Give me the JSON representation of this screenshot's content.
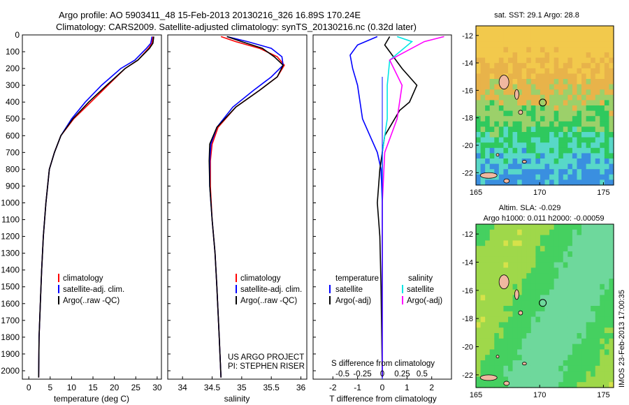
{
  "header": {
    "title_line1": "Argo profile: AO 5903411_48 15-Feb-2013 20130216_326 16.89S 170.24E",
    "title_line2": "Climatology: CARS2009. Satellite-adjusted climatology: synTS_20130216.nc (0.32d later)"
  },
  "depth_axis": {
    "ticks": [
      0,
      100,
      200,
      300,
      400,
      500,
      600,
      700,
      800,
      900,
      1000,
      1100,
      1200,
      1300,
      1400,
      1500,
      1600,
      1700,
      1800,
      1900,
      2000
    ],
    "range": [
      0,
      2050
    ]
  },
  "colors": {
    "climatology": "#ff0000",
    "satellite": "#0000ff",
    "argo": "#000000",
    "sal_satellite": "#00e5e5",
    "sal_argo": "#ff00ff",
    "land": "#f0b8a0"
  },
  "panels": {
    "temperature": {
      "xlabel": "temperature (deg C)",
      "xticks": [
        0,
        5,
        10,
        15,
        20,
        25,
        30
      ],
      "xlim": [
        -1.5,
        31
      ],
      "legend": [
        "climatology",
        "satellite-adj. clim.",
        "Argo(..raw -QC)"
      ]
    },
    "salinity": {
      "xlabel": "salinity",
      "xticks": [
        34,
        34.5,
        35,
        35.5,
        36
      ],
      "xlim": [
        33.75,
        36.1
      ],
      "legend": [
        "climatology",
        "satellite-adj. clim.",
        "Argo(..raw -QC)"
      ],
      "credit_line1": "US ARGO PROJECT",
      "credit_line2": "PI: STEPHEN RISER"
    },
    "difference": {
      "xlabel": "T difference from climatology",
      "s_label": "S difference from climatology",
      "t_ticks": [
        -2,
        -1,
        0,
        1,
        2
      ],
      "s_ticks": [
        "-0.5",
        "-0.25",
        "0",
        "0.25",
        "0.5"
      ],
      "t_xlim": [
        -2.8,
        2.8
      ],
      "legend_temperature_head": "temperature",
      "legend_salinity_head": "salinity",
      "legend_temperature": [
        "satellite",
        "Argo(-adj)"
      ],
      "legend_salinity": [
        "satellite",
        "Argo(-adj)"
      ]
    }
  },
  "maps": {
    "sst": {
      "title": "sat. SST: 29.1  Argo: 28.8",
      "xticks": [
        165,
        170,
        175
      ],
      "yticks": [
        -12,
        -14,
        -16,
        -18,
        -20,
        -22
      ],
      "xlim": [
        165,
        175.8
      ],
      "ylim": [
        -11.3,
        -22.9
      ],
      "profile": [
        170.24,
        -16.89
      ]
    },
    "sla": {
      "title_line1": "Altim. SLA: -0.029",
      "title_line2": "Argo h1000: 0.011 h2000: -0.00059",
      "xticks": [
        165,
        170,
        175
      ],
      "yticks": [
        -12,
        -14,
        -16,
        -18,
        -20,
        -22
      ],
      "xlim": [
        165,
        175.8
      ],
      "ylim": [
        -11.3,
        -22.9
      ],
      "profile": [
        170.24,
        -16.89
      ]
    },
    "side_stamp": "IMOS 23-Feb-2013 17:00:35"
  },
  "chart_data": [
    {
      "type": "line",
      "title": "",
      "xlabel": "temperature (deg C)",
      "ylabel": "",
      "xlim": [
        -1.5,
        31
      ],
      "ylim": [
        2050,
        0
      ],
      "series": [
        {
          "name": "climatology",
          "x": [
            29.0,
            28.8,
            28.0,
            25.5,
            22.5,
            18.5,
            14.5,
            10.5,
            7.5,
            6.0,
            4.8,
            4.0,
            3.4,
            3.0,
            2.7,
            2.4,
            2.3
          ],
          "y": [
            10,
            50,
            80,
            150,
            200,
            300,
            400,
            500,
            600,
            700,
            800,
            1000,
            1200,
            1400,
            1600,
            1800,
            2040
          ]
        },
        {
          "name": "satellite-adj. clim.",
          "x": [
            28.8,
            28.5,
            27.5,
            24.8,
            21.5,
            17.0,
            13.2,
            10.0,
            7.5,
            6.0,
            4.8,
            4.0,
            3.4,
            3.0,
            2.7,
            2.4,
            2.3
          ],
          "y": [
            10,
            50,
            80,
            150,
            200,
            300,
            400,
            500,
            600,
            700,
            800,
            1000,
            1200,
            1400,
            1600,
            1800,
            2040
          ]
        },
        {
          "name": "Argo(..raw -QC)",
          "x": [
            29.2,
            29.0,
            28.2,
            25.5,
            22.5,
            18.2,
            14.0,
            10.3,
            7.5,
            6.0,
            4.8,
            4.0,
            3.4,
            3.0,
            2.7,
            2.4,
            2.3
          ],
          "y": [
            10,
            50,
            80,
            150,
            200,
            300,
            400,
            500,
            600,
            700,
            800,
            1000,
            1200,
            1400,
            1600,
            1800,
            2040
          ]
        }
      ]
    },
    {
      "type": "line",
      "title": "",
      "xlabel": "salinity",
      "ylabel": "",
      "xlim": [
        33.75,
        36.1
      ],
      "ylim": [
        2050,
        0
      ],
      "series": [
        {
          "name": "climatology",
          "x": [
            34.65,
            34.9,
            35.3,
            35.6,
            35.72,
            35.6,
            35.3,
            34.9,
            34.6,
            34.5,
            34.47,
            34.47,
            34.5,
            34.55,
            34.58,
            34.62,
            34.65
          ],
          "y": [
            10,
            40,
            80,
            130,
            180,
            250,
            330,
            430,
            550,
            650,
            750,
            900,
            1100,
            1300,
            1500,
            1800,
            2040
          ]
        },
        {
          "name": "satellite-adj. clim.",
          "x": [
            34.75,
            35.1,
            35.5,
            35.68,
            35.7,
            35.5,
            35.2,
            34.85,
            34.58,
            34.48,
            34.46,
            34.46,
            34.5,
            34.55,
            34.58,
            34.62,
            34.65
          ],
          "y": [
            10,
            40,
            80,
            130,
            180,
            250,
            330,
            430,
            550,
            650,
            750,
            900,
            1100,
            1300,
            1500,
            1800,
            2040
          ]
        },
        {
          "name": "Argo(..raw -QC)",
          "x": [
            34.75,
            35.0,
            35.35,
            35.55,
            35.7,
            35.6,
            35.3,
            34.9,
            34.58,
            34.46,
            34.45,
            34.46,
            34.5,
            34.55,
            34.58,
            34.62,
            34.65
          ],
          "y": [
            10,
            40,
            80,
            130,
            180,
            250,
            330,
            430,
            550,
            650,
            750,
            900,
            1100,
            1300,
            1500,
            1800,
            2040
          ]
        }
      ]
    },
    {
      "type": "line",
      "title": "",
      "xlabel": "T difference from climatology",
      "ylabel": "",
      "xlim": [
        -2.8,
        2.8
      ],
      "ylim": [
        2050,
        0
      ],
      "series": [
        {
          "name": "temperature satellite",
          "x": [
            -0.2,
            -1.0,
            -1.3,
            -1.2,
            -1.0,
            -0.8,
            -0.5,
            -0.2,
            -0.05,
            0,
            0,
            0
          ],
          "y": [
            10,
            60,
            120,
            200,
            300,
            500,
            600,
            700,
            800,
            1000,
            1500,
            2040
          ]
        },
        {
          "name": "temperature Argo(-adj)",
          "x": [
            0.3,
            0.1,
            0.8,
            1.4,
            1.1,
            0.7,
            0.1,
            -0.1,
            -0.2,
            -0.1,
            -0.05,
            0
          ],
          "y": [
            10,
            60,
            200,
            300,
            400,
            450,
            600,
            800,
            1000,
            1200,
            1500,
            2040
          ]
        },
        {
          "name": "salinity satellite",
          "x": [
            0.6,
            1.2,
            0.3,
            0.2,
            0.2,
            0,
            0,
            0
          ],
          "y": [
            10,
            40,
            150,
            300,
            500,
            700,
            1000,
            2040
          ]
        },
        {
          "name": "salinity Argo(-adj)",
          "x": [
            2.5,
            1.7,
            0.3,
            0.8,
            0.6,
            0.1,
            0,
            0
          ],
          "y": [
            10,
            40,
            150,
            300,
            500,
            700,
            1000,
            2040
          ]
        }
      ]
    }
  ]
}
